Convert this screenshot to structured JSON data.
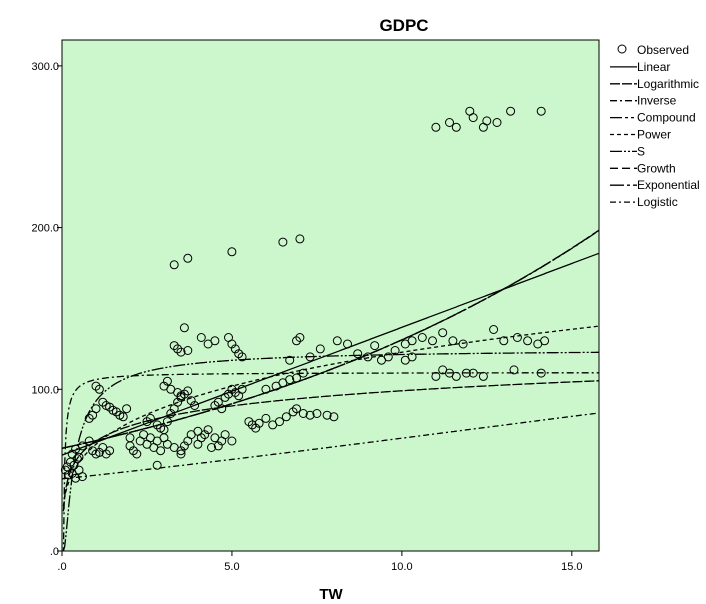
{
  "chart_data": {
    "type": "scatter",
    "title": "GDPC",
    "xlabel": "TW",
    "ylabel": "",
    "xlim": [
      0,
      15.8
    ],
    "ylim": [
      0,
      316
    ],
    "x_ticks": [
      0,
      5,
      10,
      15
    ],
    "x_tick_labels": [
      ".0",
      "5.0",
      "10.0",
      "15.0"
    ],
    "y_ticks": [
      0,
      100,
      200,
      300
    ],
    "y_tick_labels": [
      ".0",
      "100.0",
      "200.0",
      "300.0"
    ],
    "plot_background": "#ccf7cc",
    "grid": false,
    "legend_position": "right",
    "series": [
      {
        "name": "Observed",
        "kind": "points",
        "marker": "open-circle",
        "points": [
          [
            0.1,
            50
          ],
          [
            0.15,
            52
          ],
          [
            0.2,
            47
          ],
          [
            0.25,
            55
          ],
          [
            0.3,
            48
          ],
          [
            0.35,
            53
          ],
          [
            0.4,
            45
          ],
          [
            0.45,
            57
          ],
          [
            0.5,
            50
          ],
          [
            0.6,
            46
          ],
          [
            0.3,
            60
          ],
          [
            0.4,
            63
          ],
          [
            0.5,
            58
          ],
          [
            0.6,
            65
          ],
          [
            0.8,
            68
          ],
          [
            0.9,
            62
          ],
          [
            1.0,
            60
          ],
          [
            1.1,
            61
          ],
          [
            1.2,
            64
          ],
          [
            1.3,
            60
          ],
          [
            1.4,
            62
          ],
          [
            0.8,
            82
          ],
          [
            0.9,
            84
          ],
          [
            1.0,
            88
          ],
          [
            1.1,
            100
          ],
          [
            1.0,
            102
          ],
          [
            1.2,
            92
          ],
          [
            1.3,
            90
          ],
          [
            1.4,
            89
          ],
          [
            1.5,
            87
          ],
          [
            1.6,
            86
          ],
          [
            1.7,
            84
          ],
          [
            1.8,
            83
          ],
          [
            1.9,
            88
          ],
          [
            2.0,
            70
          ],
          [
            2.0,
            65
          ],
          [
            2.1,
            62
          ],
          [
            2.2,
            60
          ],
          [
            2.3,
            68
          ],
          [
            2.4,
            72
          ],
          [
            2.5,
            66
          ],
          [
            2.6,
            70
          ],
          [
            2.7,
            64
          ],
          [
            2.8,
            68
          ],
          [
            2.9,
            62
          ],
          [
            3.0,
            75
          ],
          [
            3.1,
            80
          ],
          [
            3.2,
            85
          ],
          [
            3.3,
            88
          ],
          [
            3.4,
            92
          ],
          [
            3.5,
            95
          ],
          [
            3.6,
            97
          ],
          [
            3.7,
            99
          ],
          [
            3.8,
            93
          ],
          [
            3.9,
            90
          ],
          [
            3.0,
            102
          ],
          [
            3.1,
            105
          ],
          [
            3.2,
            100
          ],
          [
            3.4,
            98
          ],
          [
            3.5,
            96
          ],
          [
            2.5,
            80
          ],
          [
            2.6,
            82
          ],
          [
            2.8,
            78
          ],
          [
            2.9,
            76
          ],
          [
            3.0,
            70
          ],
          [
            3.1,
            66
          ],
          [
            3.3,
            64
          ],
          [
            3.5,
            62
          ],
          [
            3.6,
            65
          ],
          [
            3.7,
            68
          ],
          [
            3.8,
            72
          ],
          [
            4.0,
            74
          ],
          [
            4.1,
            70
          ],
          [
            4.2,
            72
          ],
          [
            4.3,
            75
          ],
          [
            4.5,
            90
          ],
          [
            4.6,
            92
          ],
          [
            4.7,
            88
          ],
          [
            4.8,
            95
          ],
          [
            4.9,
            97
          ],
          [
            5.0,
            100
          ],
          [
            5.1,
            98
          ],
          [
            5.2,
            96
          ],
          [
            5.3,
            100
          ],
          [
            4.5,
            70
          ],
          [
            4.6,
            65
          ],
          [
            4.7,
            68
          ],
          [
            4.8,
            72
          ],
          [
            5.0,
            68
          ],
          [
            3.3,
            127
          ],
          [
            3.4,
            125
          ],
          [
            3.5,
            123
          ],
          [
            3.7,
            124
          ],
          [
            3.6,
            138
          ],
          [
            4.1,
            132
          ],
          [
            4.3,
            128
          ],
          [
            4.5,
            130
          ],
          [
            4.9,
            132
          ],
          [
            5.0,
            128
          ],
          [
            5.1,
            125
          ],
          [
            5.2,
            122
          ],
          [
            5.3,
            120
          ],
          [
            5.5,
            80
          ],
          [
            5.6,
            78
          ],
          [
            5.7,
            76
          ],
          [
            5.8,
            79
          ],
          [
            6.0,
            82
          ],
          [
            6.2,
            78
          ],
          [
            6.4,
            80
          ],
          [
            6.6,
            83
          ],
          [
            6.8,
            86
          ],
          [
            6.9,
            88
          ],
          [
            7.1,
            85
          ],
          [
            7.3,
            84
          ],
          [
            7.5,
            85
          ],
          [
            7.8,
            84
          ],
          [
            8.0,
            83
          ],
          [
            6.0,
            100
          ],
          [
            6.3,
            102
          ],
          [
            6.5,
            104
          ],
          [
            6.7,
            106
          ],
          [
            6.9,
            107
          ],
          [
            7.1,
            110
          ],
          [
            6.7,
            118
          ],
          [
            6.9,
            130
          ],
          [
            7.0,
            132
          ],
          [
            7.3,
            120
          ],
          [
            7.6,
            125
          ],
          [
            8.1,
            130
          ],
          [
            8.4,
            128
          ],
          [
            8.7,
            122
          ],
          [
            9.0,
            120
          ],
          [
            9.2,
            127
          ],
          [
            9.4,
            118
          ],
          [
            9.6,
            120
          ],
          [
            9.8,
            124
          ],
          [
            10.1,
            128
          ],
          [
            10.3,
            130
          ],
          [
            10.6,
            132
          ],
          [
            10.9,
            130
          ],
          [
            11.2,
            135
          ],
          [
            11.5,
            130
          ],
          [
            11.8,
            128
          ],
          [
            10.1,
            118
          ],
          [
            10.3,
            120
          ],
          [
            11.0,
            108
          ],
          [
            11.2,
            112
          ],
          [
            11.4,
            110
          ],
          [
            11.6,
            108
          ],
          [
            11.9,
            110
          ],
          [
            12.1,
            110
          ],
          [
            12.4,
            108
          ],
          [
            12.7,
            137
          ],
          [
            13.0,
            130
          ],
          [
            13.4,
            132
          ],
          [
            13.7,
            130
          ],
          [
            14.0,
            128
          ],
          [
            14.2,
            130
          ],
          [
            13.3,
            112
          ],
          [
            14.1,
            110
          ],
          [
            3.3,
            177
          ],
          [
            3.7,
            181
          ],
          [
            5.0,
            185
          ],
          [
            6.5,
            191
          ],
          [
            7.0,
            193
          ],
          [
            11.0,
            262
          ],
          [
            11.4,
            265
          ],
          [
            11.6,
            262
          ],
          [
            12.0,
            272
          ],
          [
            12.1,
            268
          ],
          [
            12.4,
            262
          ],
          [
            12.5,
            266
          ],
          [
            12.8,
            265
          ],
          [
            13.2,
            272
          ],
          [
            14.1,
            272
          ],
          [
            2.8,
            53
          ],
          [
            3.5,
            60
          ],
          [
            4.0,
            66
          ],
          [
            4.4,
            64
          ]
        ]
      },
      {
        "name": "Linear",
        "kind": "curve",
        "model": "linear",
        "params": {
          "b0": 59.3,
          "b1": 7.9
        },
        "dash": ""
      },
      {
        "name": "Logarithmic",
        "kind": "curve",
        "model": "logarithmic",
        "params": {
          "b0": 68,
          "b1": 13.5
        },
        "dash": "10 2"
      },
      {
        "name": "Inverse",
        "kind": "curve",
        "model": "inverse",
        "params": {
          "b0": 110.5,
          "b1": -4.5
        },
        "dash": "7 3 2 3"
      },
      {
        "name": "Compound",
        "kind": "curve",
        "model": "compound",
        "params": {
          "b0": 63.5,
          "b1": 1.0747
        },
        "dash": "12 3 3 3 3 3"
      },
      {
        "name": "Power",
        "kind": "curve",
        "model": "power",
        "params": {
          "b0": 66,
          "b1": 0.27
        },
        "dash": "4 3"
      },
      {
        "name": "S",
        "kind": "curve",
        "model": "s",
        "params": {
          "b0": 4.83,
          "b1": -0.3
        },
        "dash": "12 2 2 2 2 2"
      },
      {
        "name": "Growth",
        "kind": "curve",
        "model": "growth",
        "params": {
          "b0": 4.151,
          "b1": 0.0721
        },
        "dash": "8 4"
      },
      {
        "name": "Exponential",
        "kind": "curve",
        "model": "exponential",
        "params": {
          "b0": 63.5,
          "b1": 0.0721
        },
        "dash": "14 3 3 3"
      },
      {
        "name": "Logistic",
        "kind": "curve",
        "model": "logistic",
        "params": {
          "b0": 0.01575,
          "b1": 0.9305
        },
        "dash": "6 3 2 3"
      }
    ]
  }
}
